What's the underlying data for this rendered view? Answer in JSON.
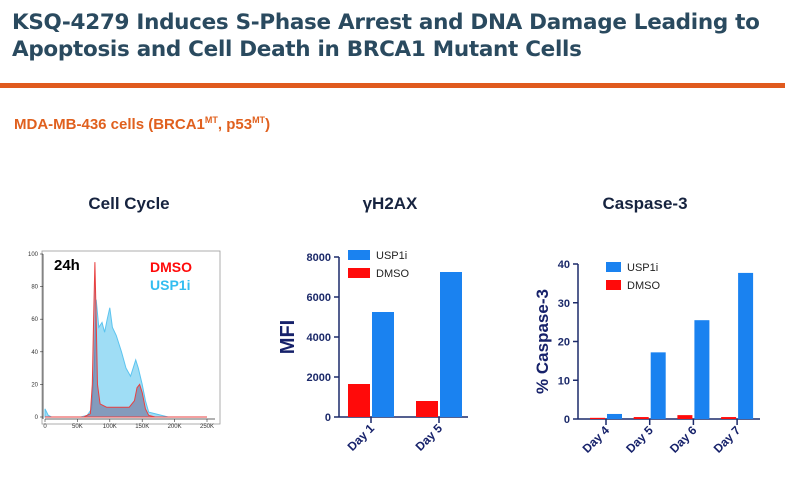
{
  "header": {
    "title_line1": "KSQ-4279 Induces S-Phase Arrest and DNA Damage Leading to",
    "title_line2": "Apoptosis and Cell Death in BRCA1 Mutant Cells",
    "subtitle_main": "MDA-MB-436 cells (BRCA1",
    "subtitle_sup1": "MT",
    "subtitle_mid": ", p53",
    "subtitle_sup2": "MT",
    "subtitle_end": ")"
  },
  "colors": {
    "title": "#2a4a5f",
    "accent": "#e05a1e",
    "usp1i": "#1a82f0",
    "dmso": "#ff0a0a",
    "axis": "#1c2a6a",
    "hist_usp1i": "#7fd2f2",
    "hist_dmso": "#e84040"
  },
  "chart_data": [
    {
      "type": "area",
      "title": "Cell Cycle",
      "annotation": "24h",
      "xlim": [
        0,
        250
      ],
      "ylim": [
        0,
        100
      ],
      "xticks": [
        "0",
        "50K",
        "100K",
        "150K",
        "200K",
        "250K"
      ],
      "yticks": [
        "0",
        "20",
        "40",
        "60",
        "80",
        "100"
      ],
      "legend": [
        "DMSO",
        "USP1i"
      ],
      "series": [
        {
          "name": "USP1i",
          "x": [
            0,
            5,
            10,
            55,
            65,
            72,
            76,
            79,
            83,
            88,
            92,
            96,
            100,
            104,
            110,
            118,
            125,
            132,
            136,
            140,
            144,
            150,
            155,
            160,
            170,
            180,
            190,
            250
          ],
          "y": [
            5,
            1,
            0,
            0,
            1,
            5,
            30,
            72,
            55,
            58,
            52,
            60,
            67,
            55,
            50,
            40,
            30,
            25,
            30,
            35,
            30,
            20,
            10,
            3,
            2,
            1,
            0,
            0
          ]
        },
        {
          "name": "DMSO",
          "x": [
            0,
            60,
            70,
            73,
            75,
            77,
            79,
            81,
            85,
            95,
            110,
            130,
            138,
            142,
            146,
            150,
            155,
            160,
            170,
            250
          ],
          "y": [
            0,
            0,
            2,
            20,
            60,
            95,
            60,
            20,
            8,
            6,
            6,
            6,
            10,
            18,
            20,
            15,
            5,
            1,
            0,
            0
          ]
        }
      ]
    },
    {
      "type": "bar",
      "title": "γH2AX",
      "ylabel": "MFI",
      "ylim": [
        0,
        8000
      ],
      "yticks": [
        "0",
        "2000",
        "4000",
        "6000",
        "8000"
      ],
      "categories": [
        "Day 1",
        "Day 5"
      ],
      "legend": [
        "USP1i",
        "DMSO"
      ],
      "series": [
        {
          "name": "DMSO",
          "values": [
            1650,
            800
          ]
        },
        {
          "name": "USP1i",
          "values": [
            5250,
            7250
          ]
        }
      ]
    },
    {
      "type": "bar",
      "title": "Caspase-3",
      "ylabel": "% Caspase-3",
      "ylim": [
        0,
        40
      ],
      "yticks": [
        "0",
        "10",
        "20",
        "30",
        "40"
      ],
      "categories": [
        "Day 4",
        "Day 5",
        "Day 6",
        "Day 7"
      ],
      "legend": [
        "USP1i",
        "DMSO"
      ],
      "series": [
        {
          "name": "DMSO",
          "values": [
            0.3,
            0.5,
            1.0,
            0.5
          ]
        },
        {
          "name": "USP1i",
          "values": [
            1.3,
            17.2,
            25.5,
            37.7
          ]
        }
      ]
    }
  ]
}
